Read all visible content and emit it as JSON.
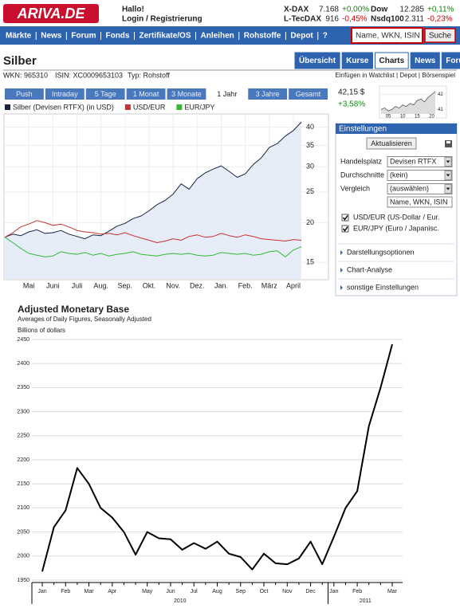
{
  "header": {
    "logo": "ARIVA.DE",
    "greeting": "Hallo!",
    "login": "Login / Registrierung",
    "tickers": [
      {
        "name": "X-DAX",
        "value": "7.168",
        "change": "+0,00%"
      },
      {
        "name": "Dow",
        "value": "12.285",
        "change": "+0,11%"
      },
      {
        "name": "L-TecDAX",
        "value": "916",
        "change": "-0,45%"
      },
      {
        "name": "Nsdq100",
        "value": "2.311",
        "change": "-0,23%"
      }
    ]
  },
  "nav": {
    "items": [
      "Märkte",
      "News",
      "Forum",
      "Fonds",
      "Zertifikate/OS",
      "Anleihen",
      "Rohstoffe",
      "Depot",
      "?"
    ],
    "search_placeholder": "Name, WKN, ISIN",
    "search_button": "Suche"
  },
  "instrument": {
    "title": "Silber",
    "tabs": [
      "Übersicht",
      "Kurse",
      "Charts",
      "News",
      "Forum"
    ],
    "active_tab": 2,
    "wkn": "WKN: 965310",
    "isin": "ISIN: XC0009653103",
    "type": "Typ: Rohstoff",
    "links": "Einfügen in Watchlist | Depot | Börsenspiel"
  },
  "chart_controls": {
    "periods": [
      "Push",
      "Intraday",
      "5 Tage",
      "1 Monat",
      "3 Monate",
      "1 Jahr",
      "3 Jahre",
      "Gesamt"
    ],
    "active_period": 5
  },
  "quote": {
    "price": "42,15 $",
    "change": "+3,58%"
  },
  "settings": {
    "title": "Einstellungen",
    "update_button": "Aktualisieren",
    "fields": [
      {
        "label": "Handelsplatz",
        "value": "Devisen RTFX"
      },
      {
        "label": "Durchschnitte",
        "value": "(kein)"
      },
      {
        "label": "Vergleich",
        "value": "(auswählen)"
      }
    ],
    "search_placeholder": "Name, WKN, ISIN",
    "compare": [
      "USD/EUR (US-Dollar / Eur.",
      "EUR/JPY (Euro / Japanisc."
    ],
    "links": [
      "Darstellungsoptionen",
      "Chart-Analyse",
      "sonstige Einstellungen"
    ]
  },
  "chart_data": [
    {
      "type": "line",
      "log": true,
      "grid": true,
      "x_grid": true,
      "categories": [
        null,
        null,
        null,
        "Mai",
        null,
        null,
        "Juni",
        null,
        null,
        "Juli",
        null,
        null,
        "Aug.",
        null,
        null,
        "Sep.",
        null,
        null,
        "Okt.",
        null,
        null,
        "Nov.",
        null,
        null,
        "Dez.",
        null,
        null,
        "Jan.",
        null,
        null,
        "Feb.",
        null,
        null,
        "März",
        null,
        null,
        "April",
        null
      ],
      "ylim": [
        13.3,
        43.5
      ],
      "yticks": [
        15,
        20,
        25,
        30,
        35,
        40
      ],
      "series": [
        {
          "name": "Silber (Devisen RTFX) (in USD)",
          "color": "#1a2440",
          "fill": "#e6ecf8",
          "values": [
            18.0,
            18.4,
            18.2,
            18.7,
            19.0,
            18.5,
            18.6,
            18.9,
            18.4,
            18.1,
            17.8,
            18.3,
            18.2,
            18.8,
            19.5,
            19.9,
            20.6,
            21.0,
            21.8,
            22.8,
            23.5,
            24.6,
            26.5,
            25.5,
            27.5,
            28.7,
            29.5,
            30.2,
            29.0,
            27.8,
            28.5,
            30.5,
            32.0,
            34.5,
            35.5,
            37.5,
            39.0,
            41.5
          ]
        },
        {
          "name": "USD/EUR",
          "color": "#c83232",
          "values": [
            18.0,
            18.6,
            19.4,
            19.8,
            20.3,
            20.0,
            19.6,
            19.8,
            19.4,
            18.9,
            18.7,
            18.6,
            18.4,
            18.5,
            18.3,
            18.6,
            18.2,
            17.9,
            17.6,
            17.3,
            17.5,
            17.8,
            17.6,
            18.1,
            18.3,
            18.0,
            18.1,
            18.5,
            18.2,
            18.0,
            18.3,
            18.1,
            17.8,
            17.7,
            17.6,
            17.5,
            17.7,
            17.6
          ]
        },
        {
          "name": "EUR/JPY",
          "color": "#33bb33",
          "values": [
            18.0,
            17.3,
            16.6,
            16.0,
            15.8,
            15.6,
            15.7,
            16.2,
            16.0,
            15.9,
            16.1,
            15.8,
            16.0,
            15.7,
            15.9,
            16.0,
            16.2,
            15.9,
            15.8,
            15.7,
            15.9,
            16.0,
            15.9,
            16.0,
            15.8,
            15.7,
            15.8,
            16.1,
            16.0,
            15.9,
            16.0,
            15.8,
            15.9,
            16.2,
            16.3,
            15.6,
            16.4,
            16.8
          ]
        }
      ]
    },
    {
      "type": "line",
      "grid": true,
      "categories": [
        null,
        null,
        "05",
        null,
        null,
        null,
        "10",
        null,
        null,
        null,
        "15",
        null,
        null,
        null,
        "20",
        null
      ],
      "ylim": [
        40.7,
        42.4
      ],
      "yticks": [
        41,
        42
      ],
      "series": [
        {
          "color": "#555555",
          "fill": "#dddddd",
          "values": [
            41.0,
            41.1,
            40.9,
            41.0,
            41.2,
            41.1,
            41.3,
            41.2,
            41.4,
            41.3,
            41.6,
            41.7,
            41.5,
            41.8,
            42.0,
            42.2
          ]
        }
      ]
    },
    {
      "type": "line",
      "title": "Adjusted Monetary Base",
      "subtitle": "Averages of Daily Figures, Seasonally Adjusted",
      "y_label": "Billions of dollars",
      "grid": true,
      "categories": [
        "Jan",
        null,
        "Feb",
        null,
        "Mar",
        null,
        "Apr",
        null,
        null,
        "May",
        null,
        "Jun",
        null,
        "Jul",
        null,
        "Aug",
        null,
        "Sep",
        null,
        "Oct",
        null,
        "Nov",
        null,
        "Dec",
        null,
        "Jan",
        null,
        "Feb",
        null,
        null,
        "Mar"
      ],
      "x_groups": [
        "2010",
        "2011"
      ],
      "ylim": [
        1950,
        2450
      ],
      "yticks": [
        1950,
        2000,
        2050,
        2100,
        2150,
        2200,
        2250,
        2300,
        2350,
        2400,
        2450
      ],
      "series": [
        {
          "color": "#000000",
          "values": [
            1968,
            2060,
            2095,
            2183,
            2150,
            2100,
            2080,
            2050,
            2003,
            2050,
            2037,
            2035,
            2013,
            2027,
            2015,
            2030,
            2005,
            1998,
            1972,
            2005,
            1985,
            1983,
            1995,
            2030,
            1983,
            2040,
            2100,
            2135,
            2270,
            2350,
            2440
          ]
        }
      ]
    }
  ]
}
